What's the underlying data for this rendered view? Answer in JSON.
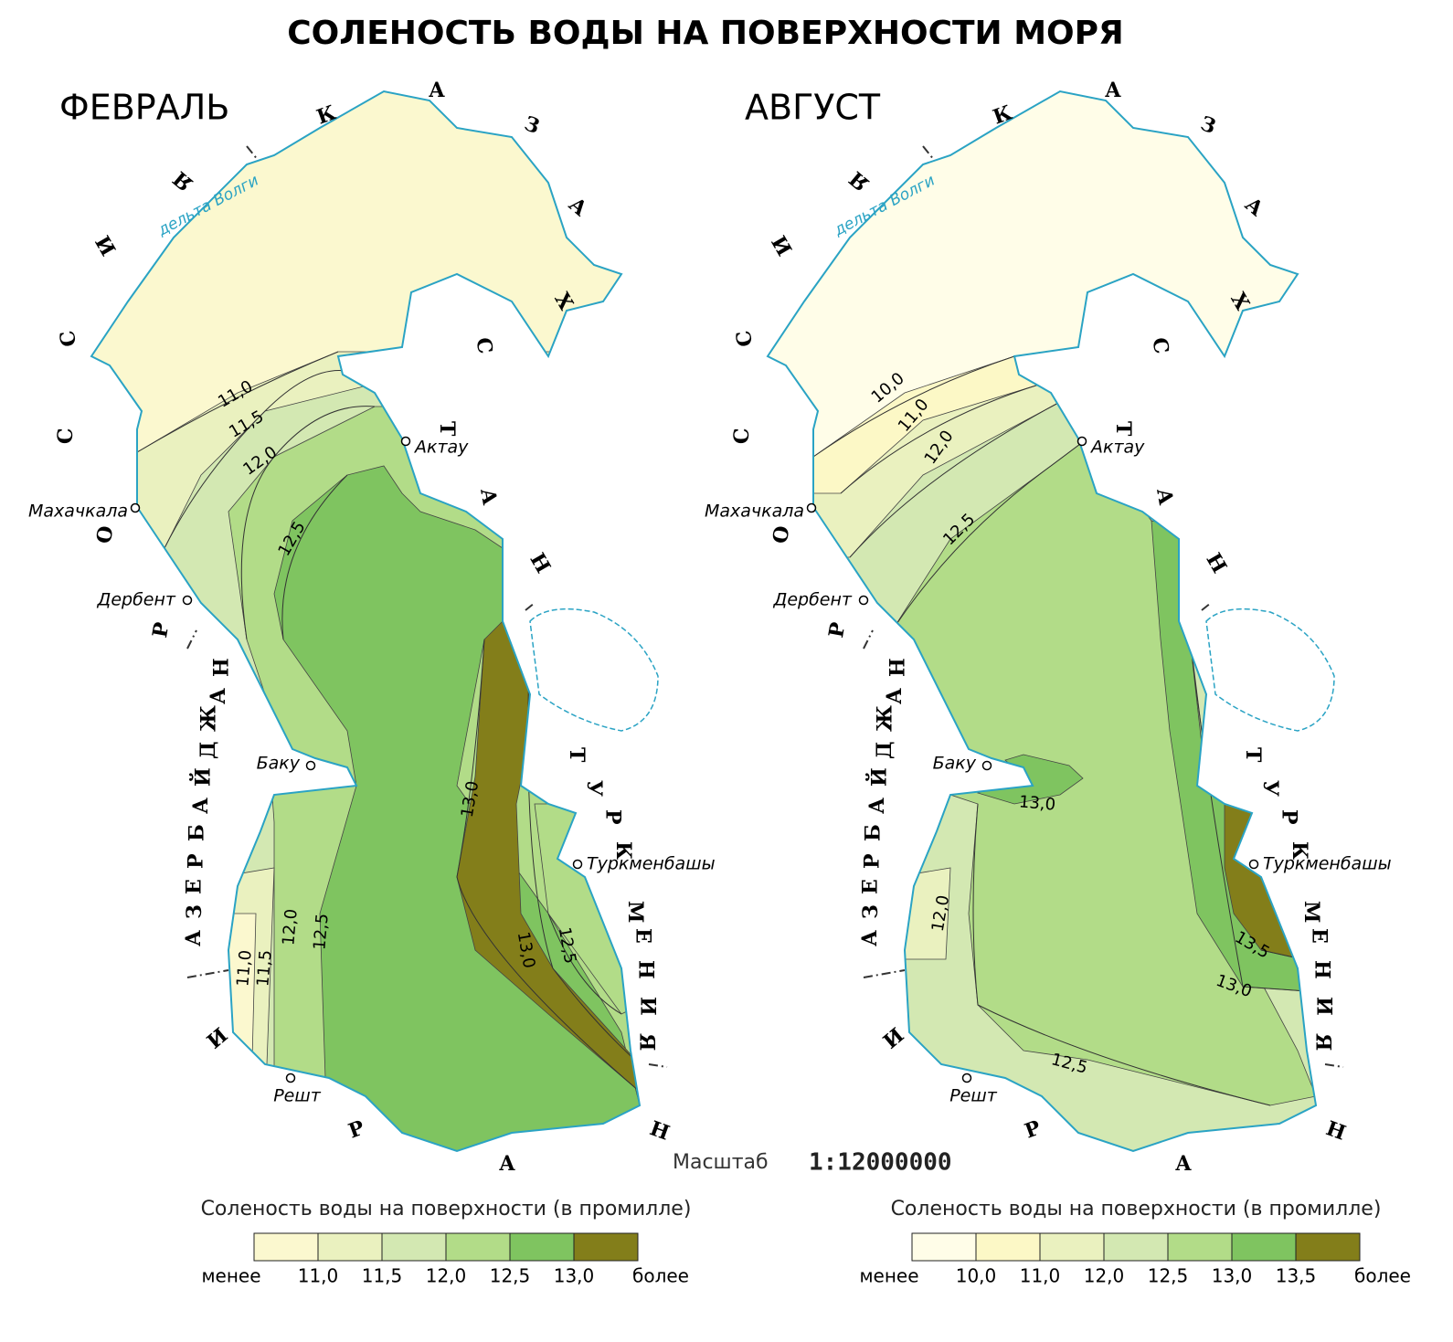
{
  "title": "СОЛЕНОСТЬ ВОДЫ НА ПОВЕРХНОСТИ МОРЯ",
  "scale": {
    "label": "Масштаб",
    "value": "1:12000000"
  },
  "panels": [
    {
      "month": "ФЕВРАЛЬ",
      "countries": [
        "КАЗАХСТАН",
        "РОССИЯ",
        "АЗЕРБАЙДЖАН",
        "ТУРКМЕНИЯ",
        "ИРАН"
      ],
      "delta": "дельта Волги",
      "cities": [
        "Махачкала",
        "Дербент",
        "Баку",
        "Решт",
        "Актау",
        "Туркменбашы"
      ],
      "isolines": [
        "11,0",
        "11,5",
        "12,0",
        "12,5",
        "13,0",
        "13,0",
        "12,5",
        "12,5",
        "12,0",
        "11,5",
        "11,0"
      ],
      "legend": {
        "title": "Соленость воды на поверхности (в промилле)",
        "below": "менее",
        "above": "более",
        "breaks": [
          "11,0",
          "11,5",
          "12,0",
          "12,5",
          "13,0"
        ],
        "colors": [
          "#fbf8cf",
          "#eaf1bf",
          "#d3e8b2",
          "#b2dc88",
          "#7fc460",
          "#837e1a"
        ]
      }
    },
    {
      "month": "АВГУСТ",
      "countries": [
        "КАЗАХСТАН",
        "РОССИЯ",
        "АЗЕРБАЙДЖАН",
        "ТУРКМЕНИЯ",
        "ИРАН"
      ],
      "delta": "дельта Волги",
      "cities": [
        "Махачкала",
        "Дербент",
        "Баку",
        "Решт",
        "Актау",
        "Туркменбашы"
      ],
      "isolines": [
        "10,0",
        "11,0",
        "12,0",
        "12,5",
        "13,0",
        "13,5",
        "13,0",
        "12,5",
        "12,0"
      ],
      "legend": {
        "title": "Соленость воды на поверхности (в промилле)",
        "below": "менее",
        "above": "более",
        "breaks": [
          "10,0",
          "11,0",
          "12,0",
          "12,5",
          "13,0",
          "13,5"
        ],
        "colors": [
          "#fffde8",
          "#fcf8c6",
          "#eaf1bf",
          "#d3e8b2",
          "#b2dc88",
          "#7fc460",
          "#837e1a"
        ]
      }
    }
  ]
}
